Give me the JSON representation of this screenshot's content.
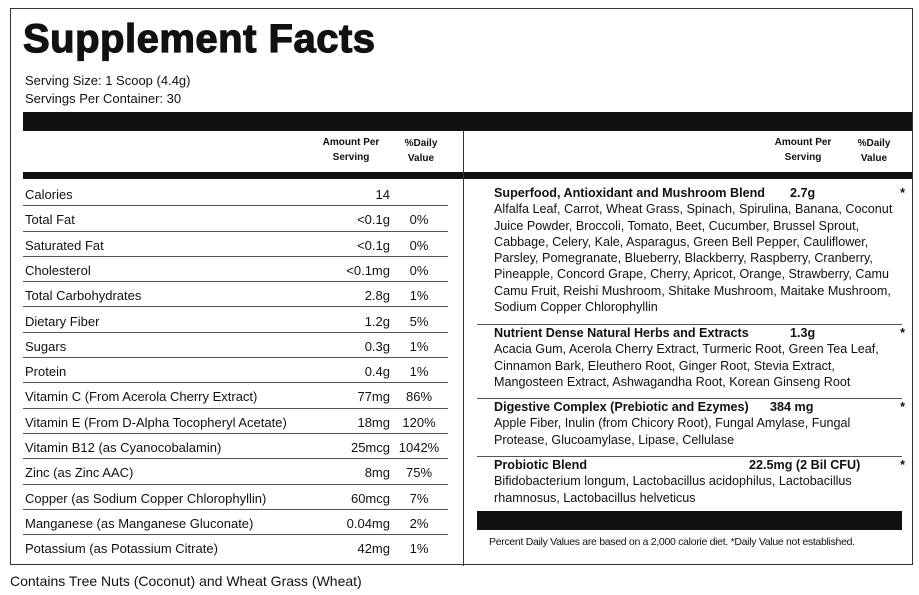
{
  "title": "Supplement Facts",
  "serving_size": "Serving Size: 1 Scoop (4.4g)",
  "servings_per_container": "Servings Per Container: 30",
  "headers": {
    "amount": "Amount Per",
    "amount2": "Serving",
    "dv": "%Daily",
    "dv2": "Value"
  },
  "nutrients": [
    {
      "name": "Calories",
      "amount": "14",
      "dv": ""
    },
    {
      "name": "Total Fat",
      "amount": "<0.1g",
      "dv": "0%"
    },
    {
      "name": "Saturated Fat",
      "amount": "<0.1g",
      "dv": "0%"
    },
    {
      "name": "Cholesterol",
      "amount": "<0.1mg",
      "dv": "0%"
    },
    {
      "name": "Total Carbohydrates",
      "amount": "2.8g",
      "dv": "1%"
    },
    {
      "name": "Dietary Fiber",
      "amount": "1.2g",
      "dv": "5%"
    },
    {
      "name": "Sugars",
      "amount": "0.3g",
      "dv": "1%"
    },
    {
      "name": "Protein",
      "amount": "0.4g",
      "dv": "1%"
    },
    {
      "name": "Vitamin C (From Acerola Cherry Extract)",
      "amount": "77mg",
      "dv": "86%"
    },
    {
      "name": "Vitamin E (From D-Alpha Tocopheryl Acetate)",
      "amount": "18mg",
      "dv": "120%"
    },
    {
      "name": "Vitamin B12 (as Cyanocobalamin)",
      "amount": "25mcg",
      "dv": "1042%"
    },
    {
      "name": "Zinc (as Zinc AAC)",
      "amount": "8mg",
      "dv": "75%"
    },
    {
      "name": "Copper (as Sodium Copper Chlorophyllin)",
      "amount": "60mcg",
      "dv": "7%"
    },
    {
      "name": "Manganese (as Manganese Gluconate)",
      "amount": "0.04mg",
      "dv": "2%"
    },
    {
      "name": "Potassium (as Potassium Citrate)",
      "amount": "42mg",
      "dv": "1%"
    }
  ],
  "blends": [
    {
      "name": "Superfood, Antioxidant and Mushroom Blend",
      "amount": "2.7g",
      "dv": "*",
      "ingredients": "Alfalfa Leaf, Carrot, Wheat Grass, Spinach, Spirulina, Banana, Coconut Juice Powder, Broccoli, Tomato, Beet, Cucumber, Brussel Sprout, Cabbage, Celery, Kale, Asparagus, Green Bell Pepper, Cauliflower, Parsley, Pomegranate, Blueberry, Blackberry, Raspberry, Cranberry, Pineapple, Concord Grape, Cherry, Apricot, Orange, Strawberry, Camu Camu Fruit, Reishi Mushroom, Shitake Mushroom, Maitake Mushroom, Sodium Copper Chlorophyllin"
    },
    {
      "name": "Nutrient Dense Natural Herbs and Extracts",
      "amount": "1.3g",
      "dv": "*",
      "ingredients": "Acacia Gum, Acerola Cherry Extract, Turmeric Root, Green Tea Leaf, Cinnamon Bark, Eleuthero Root, Ginger Root, Stevia Extract, Mangosteen Extract, Ashwagandha Root, Korean Ginseng Root"
    },
    {
      "name": "Digestive Complex (Prebiotic and Ezymes)",
      "amount": "384 mg",
      "dv": "*",
      "ingredients": "Apple Fiber, Inulin (from Chicory Root), Fungal Amylase, Fungal Protease, Glucoamylase, Lipase, Cellulase"
    },
    {
      "name": "Probiotic Blend",
      "amount": "22.5mg (2 Bil CFU)",
      "dv": "*",
      "ingredients": "Bifidobacterium longum, Lactobacillus acidophilus, Lactobacillus rhamnosus, Lactobacillus helveticus"
    }
  ],
  "footnote": "Percent Daily Values are based on a 2,000 calorie diet. *Daily Value not established.",
  "allergen": "Contains Tree Nuts (Coconut) and Wheat Grass (Wheat)"
}
